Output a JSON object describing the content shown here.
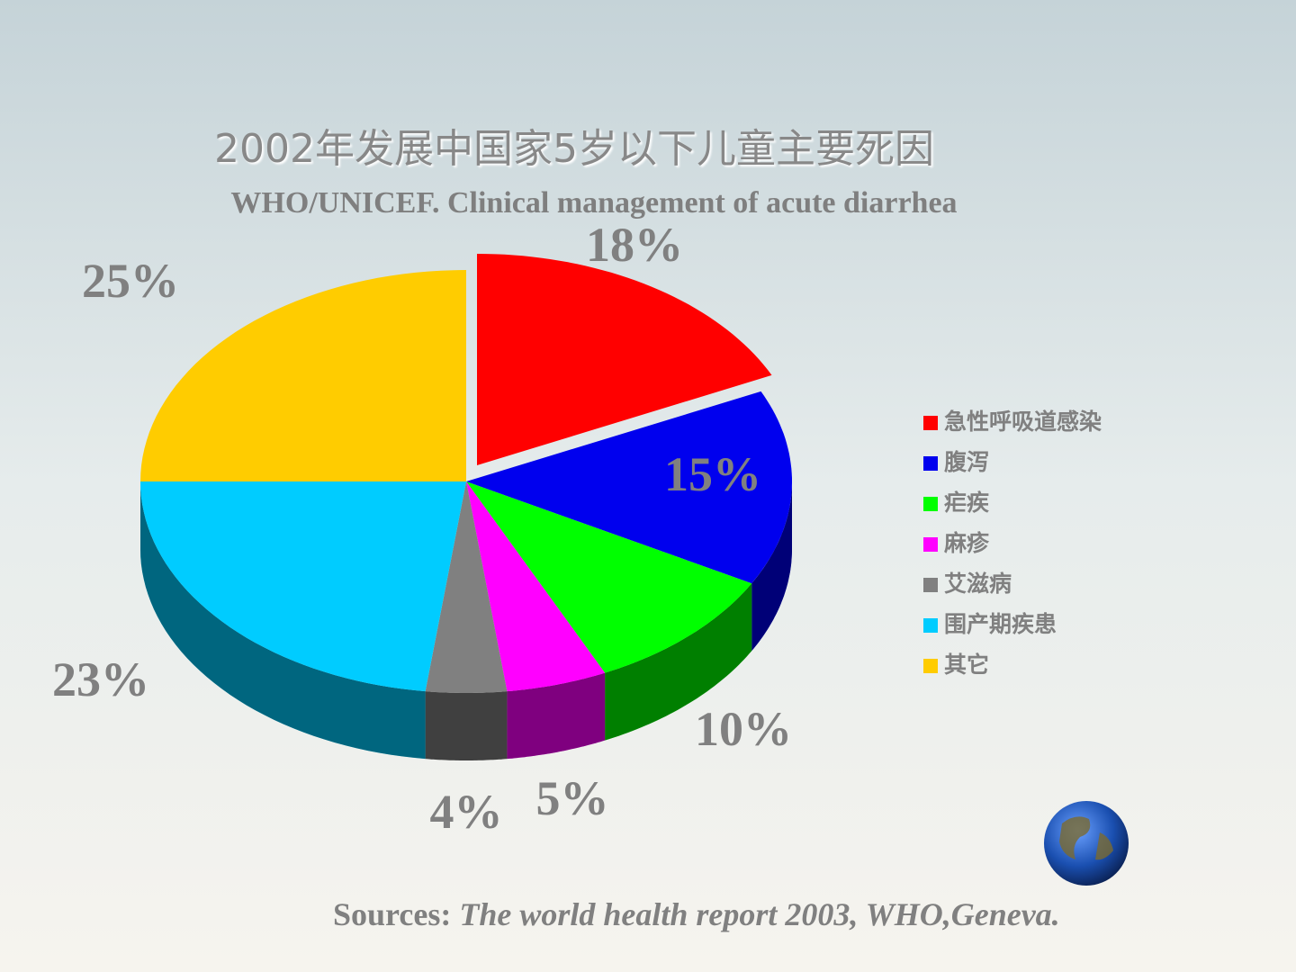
{
  "chart_data": {
    "type": "pie",
    "title": "2002年发展中国家5岁以下儿童主要死因",
    "subtitle": "WHO/UNICEF. Clinical management of acute diarrhea",
    "categories": [
      "急性呼吸道感染",
      "腹泻",
      "疟疾",
      "麻疹",
      "艾滋病",
      "围产期疾患",
      "其它"
    ],
    "values": [
      18,
      15,
      10,
      5,
      4,
      23,
      25
    ],
    "value_labels": [
      "18%",
      "15%",
      "10%",
      "5%",
      "4%",
      "23%",
      "25%"
    ],
    "colors": [
      "#ff0000",
      "#0000ee",
      "#00ff00",
      "#ff00ff",
      "#808080",
      "#00ccff",
      "#ffcc00"
    ],
    "legend": "right"
  },
  "source": {
    "label": "Sources:",
    "text": "The world health report 2003, WHO,Geneva."
  }
}
